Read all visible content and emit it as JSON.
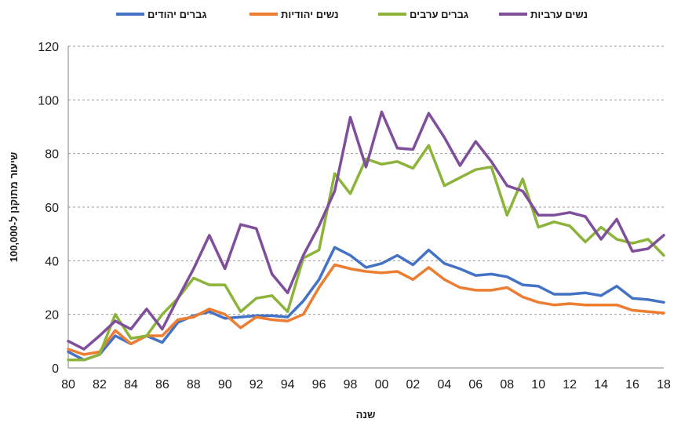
{
  "chart_data": {
    "type": "line",
    "title": "",
    "xlabel": "שנה",
    "ylabel": "שיעור מתוקנן ל-100,000",
    "ylim": [
      0,
      120
    ],
    "yticks": [
      0,
      20,
      40,
      60,
      80,
      100,
      120
    ],
    "x": [
      1980,
      1981,
      1982,
      1983,
      1984,
      1985,
      1986,
      1987,
      1988,
      1989,
      1990,
      1991,
      1992,
      1993,
      1994,
      1995,
      1996,
      1997,
      1998,
      1999,
      2000,
      2001,
      2002,
      2003,
      2004,
      2005,
      2006,
      2007,
      2008,
      2009,
      2010,
      2011,
      2012,
      2013,
      2014,
      2015,
      2016,
      2017,
      2018
    ],
    "xtick_values": [
      1980,
      1982,
      1984,
      1986,
      1988,
      1990,
      1992,
      1994,
      1996,
      1998,
      2000,
      2002,
      2004,
      2006,
      2008,
      2010,
      2012,
      2014,
      2016,
      2018
    ],
    "xtick_labels": [
      "80",
      "82",
      "84",
      "86",
      "88",
      "90",
      "92",
      "94",
      "96",
      "98",
      "00",
      "02",
      "04",
      "06",
      "08",
      "10",
      "12",
      "14",
      "16",
      "18"
    ],
    "grid": true,
    "legend_position": "top",
    "series": [
      {
        "name": "גברים יהודים",
        "color": "#4472C4",
        "values": [
          6,
          3,
          5,
          12,
          9,
          12,
          9.5,
          17,
          19.5,
          21,
          18.5,
          19,
          19.5,
          19.5,
          19,
          25,
          33,
          45,
          42,
          37.5,
          39,
          42,
          38.5,
          44,
          39,
          37,
          34.5,
          35,
          34,
          31,
          30.5,
          27.5,
          27.5,
          28,
          27,
          30.5,
          26,
          25.5,
          24.5
        ]
      },
      {
        "name": "נשים יהודיות",
        "color": "#ED7D31",
        "values": [
          7,
          5,
          6,
          14,
          9,
          12,
          12,
          18,
          19,
          22,
          20,
          15,
          19,
          18,
          17.5,
          20,
          30,
          38.5,
          37,
          36,
          35.5,
          36,
          33,
          37.5,
          33,
          30,
          29,
          29,
          30,
          26.5,
          24.5,
          23.5,
          24,
          23.5,
          23.5,
          23.5,
          21.5,
          21,
          20.5
        ]
      },
      {
        "name": "גברים ערבים",
        "color": "#8DB43A",
        "values": [
          3,
          3,
          5,
          20,
          11,
          12,
          20,
          26,
          33.5,
          31,
          31,
          21,
          26,
          27,
          21,
          41,
          44,
          72.5,
          65,
          78,
          76,
          77,
          74.5,
          83,
          68,
          71,
          74,
          75,
          57,
          70.5,
          52.5,
          54.5,
          53,
          47,
          52.5,
          48,
          46.5,
          48,
          42
        ]
      },
      {
        "name": "נשים ערביות",
        "color": "#7F4F9B",
        "values": [
          10,
          7,
          12,
          17.5,
          14.5,
          22,
          14.5,
          26,
          37,
          49.5,
          37,
          53.5,
          52,
          35,
          28,
          42,
          53,
          66,
          93.5,
          75,
          95.5,
          82,
          81.5,
          95,
          86,
          75.5,
          84.5,
          77,
          68,
          66,
          57,
          57,
          58,
          56.5,
          48,
          55.5,
          43.5,
          44.5,
          49.5
        ]
      }
    ]
  }
}
